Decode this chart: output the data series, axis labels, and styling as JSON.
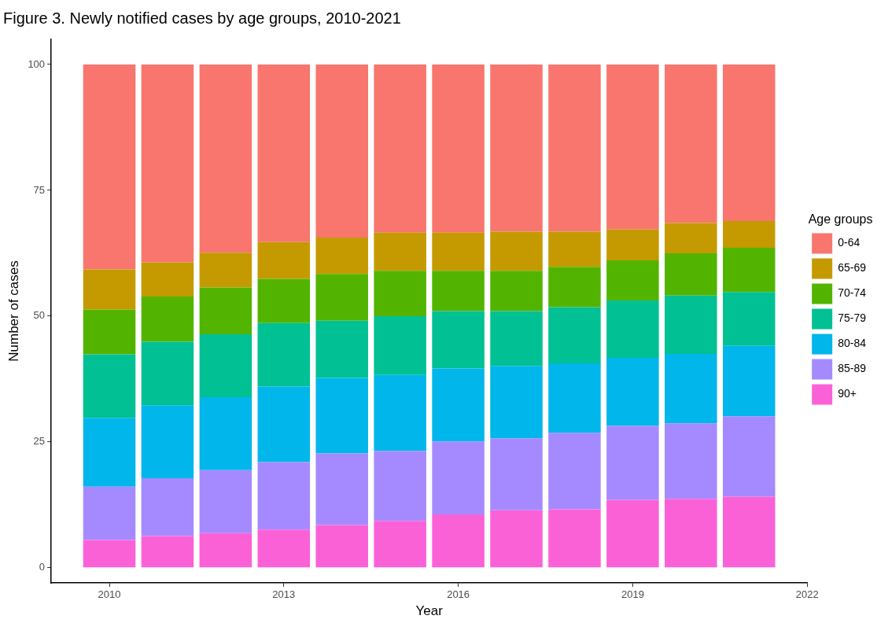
{
  "chart_data": {
    "type": "bar",
    "title": "Figure 3. Newly notified cases by age groups, 2010-2021",
    "xlabel": "Year",
    "ylabel": "Number of cases",
    "legend_title": "Age groups",
    "x": [
      2010,
      2011,
      2012,
      2013,
      2014,
      2015,
      2016,
      2017,
      2018,
      2019,
      2020,
      2021
    ],
    "stacked": true,
    "grid": false,
    "legend": "right",
    "xlim": [
      2009,
      2022
    ],
    "xticks": [
      2010,
      2013,
      2016,
      2019,
      2022
    ],
    "ylim": [
      -3,
      105
    ],
    "yticks": [
      0,
      25,
      50,
      75,
      100
    ],
    "series": [
      {
        "name": "90+",
        "color": "#fb61d7",
        "values": [
          5.5,
          6.3,
          6.9,
          7.6,
          8.5,
          9.3,
          10.6,
          11.4,
          11.6,
          13.5,
          13.7,
          14.1
        ]
      },
      {
        "name": "85-89",
        "color": "#a58aff",
        "values": [
          10.6,
          11.5,
          12.5,
          13.4,
          14.2,
          13.9,
          14.5,
          14.3,
          15.2,
          14.7,
          15.0,
          16.0
        ]
      },
      {
        "name": "80-84",
        "color": "#00b6eb",
        "values": [
          13.7,
          14.5,
          14.5,
          15.0,
          15.0,
          15.1,
          14.5,
          14.4,
          13.8,
          13.5,
          13.8,
          14.0
        ]
      },
      {
        "name": "75-79",
        "color": "#00c094",
        "values": [
          12.6,
          12.6,
          12.5,
          12.6,
          11.4,
          11.7,
          11.4,
          10.9,
          11.2,
          11.4,
          11.6,
          10.7
        ]
      },
      {
        "name": "70-74",
        "color": "#53b400",
        "values": [
          8.9,
          9.0,
          9.3,
          8.8,
          9.3,
          9.0,
          8.0,
          8.0,
          8.0,
          8.0,
          8.4,
          8.8
        ]
      },
      {
        "name": "65-69",
        "color": "#c49a00",
        "values": [
          8.0,
          6.8,
          6.9,
          7.3,
          7.2,
          7.6,
          7.6,
          7.8,
          7.0,
          6.1,
          6.0,
          5.3
        ]
      },
      {
        "name": "0-64",
        "color": "#f8766d",
        "values": [
          40.7,
          39.3,
          37.4,
          35.3,
          34.4,
          33.4,
          33.4,
          33.2,
          33.2,
          32.8,
          31.5,
          31.1
        ]
      }
    ]
  }
}
